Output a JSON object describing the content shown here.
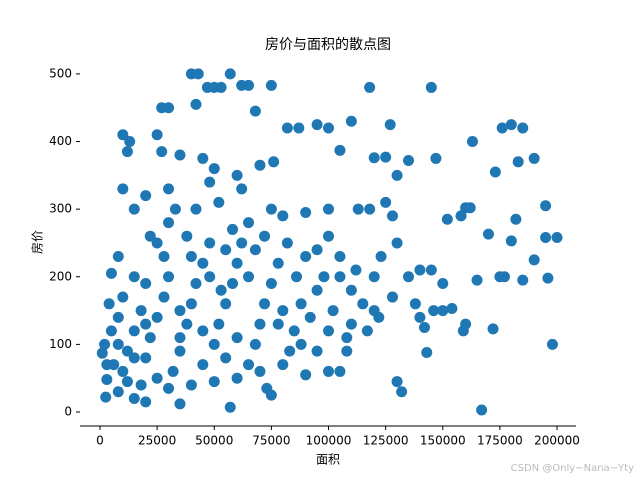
{
  "chart_data": {
    "type": "scatter",
    "title": "房价与面积的散点图",
    "x_label": "面积",
    "y_label": "房价",
    "watermark": "CSDN @Only~Nana~Yty",
    "color": "#1f77b4",
    "xlim": [
      -8750,
      208300
    ],
    "ylim": [
      -20.7,
      525
    ],
    "xticks": [
      0,
      25000,
      50000,
      75000,
      100000,
      125000,
      150000,
      175000,
      200000
    ],
    "yticks": [
      0,
      100,
      200,
      300,
      400,
      500
    ],
    "x": [
      40000,
      43000,
      57000,
      50000,
      53000,
      47000,
      62000,
      65000,
      75000,
      118000,
      145000,
      10000,
      13000,
      12000,
      27000,
      30000,
      42000,
      68000,
      82000,
      87000,
      95000,
      100000,
      110000,
      127000,
      176000,
      180000,
      185000,
      163000,
      190000,
      183000,
      173000,
      147000,
      135000,
      120000,
      125000,
      105000,
      130000,
      160000,
      162000,
      158000,
      152000,
      195000,
      200000,
      195000,
      180000,
      182000,
      170000,
      165000,
      175000,
      177000,
      185000,
      190000,
      196000,
      198000,
      167000,
      172000,
      159000,
      146000,
      154000,
      150000,
      140000,
      142000,
      143000,
      132000,
      130000,
      105000,
      95000,
      108000,
      120000,
      135000,
      140000,
      130000,
      123000,
      118000,
      125000,
      128000,
      113000,
      100000,
      90000,
      80000,
      76000,
      70000,
      60000,
      50000,
      45000,
      35000,
      25000,
      27000,
      30000,
      20000,
      15000,
      10000,
      8000,
      5000,
      4000,
      2000,
      1000,
      3000,
      2500,
      8000,
      15000,
      20000,
      35000,
      57000,
      75000,
      73000,
      80000,
      90000,
      100000,
      10000,
      12000,
      15000,
      18000,
      20000,
      22000,
      25000,
      28000,
      30000,
      32000,
      35000,
      38000,
      40000,
      42000,
      45000,
      48000,
      50000,
      52000,
      55000,
      58000,
      60000,
      62000,
      65000,
      68000,
      70000,
      72000,
      75000,
      78000,
      80000,
      85000,
      88000,
      92000,
      95000,
      98000,
      102000,
      8000,
      6000,
      12000,
      18000,
      25000,
      30000,
      40000,
      50000,
      60000,
      65000,
      55000,
      45000,
      35000,
      28000,
      38000,
      42000,
      52000,
      58000,
      62000,
      48000,
      33000,
      22000,
      15000,
      20000,
      10000,
      25000,
      30000,
      40000,
      55000,
      68000,
      72000,
      75000,
      82000,
      86000,
      90000,
      105000,
      110000,
      115000,
      100000,
      110000,
      83000,
      70000,
      60000,
      45000,
      35000,
      15000,
      20000,
      8000,
      5000,
      3000,
      48000,
      53000,
      65000,
      78000,
      88000,
      95000,
      100000,
      105000,
      112000,
      120000,
      138000,
      150000,
      160000,
      145000,
      128000,
      117000,
      108000,
      122000
    ],
    "y": [
      500,
      500,
      500,
      480,
      480,
      480,
      483,
      483,
      483,
      480,
      480,
      410,
      400,
      385,
      450,
      450,
      455,
      445,
      420,
      420,
      425,
      420,
      430,
      425,
      420,
      425,
      420,
      400,
      375,
      370,
      355,
      375,
      372,
      376,
      377,
      387,
      350,
      302,
      302,
      290,
      285,
      305,
      258,
      258,
      253,
      285,
      263,
      195,
      200,
      200,
      195,
      225,
      198,
      100,
      3,
      123,
      120,
      150,
      153,
      150,
      140,
      125,
      88,
      30,
      45,
      60,
      90,
      90,
      150,
      200,
      210,
      250,
      230,
      300,
      310,
      290,
      300,
      300,
      295,
      290,
      370,
      365,
      350,
      360,
      375,
      380,
      410,
      385,
      330,
      320,
      300,
      330,
      230,
      205,
      160,
      100,
      87,
      48,
      22,
      30,
      20,
      15,
      12,
      7,
      25,
      35,
      70,
      55,
      60,
      60,
      90,
      120,
      150,
      80,
      110,
      140,
      170,
      200,
      60,
      90,
      130,
      160,
      190,
      220,
      250,
      100,
      130,
      160,
      190,
      220,
      250,
      280,
      100,
      130,
      160,
      190,
      220,
      150,
      120,
      160,
      140,
      180,
      200,
      150,
      100,
      70,
      45,
      40,
      50,
      35,
      40,
      45,
      50,
      70,
      80,
      70,
      150,
      230,
      260,
      300,
      310,
      270,
      330,
      340,
      300,
      260,
      200,
      190,
      170,
      250,
      280,
      230,
      240,
      240,
      260,
      300,
      250,
      200,
      230,
      200,
      180,
      160,
      120,
      130,
      90,
      60,
      110,
      120,
      110,
      80,
      130,
      140,
      120,
      70,
      200,
      180,
      200,
      130,
      100,
      240,
      260,
      230,
      210,
      200,
      160,
      190,
      130,
      210,
      170,
      120,
      110,
      140
    ]
  }
}
